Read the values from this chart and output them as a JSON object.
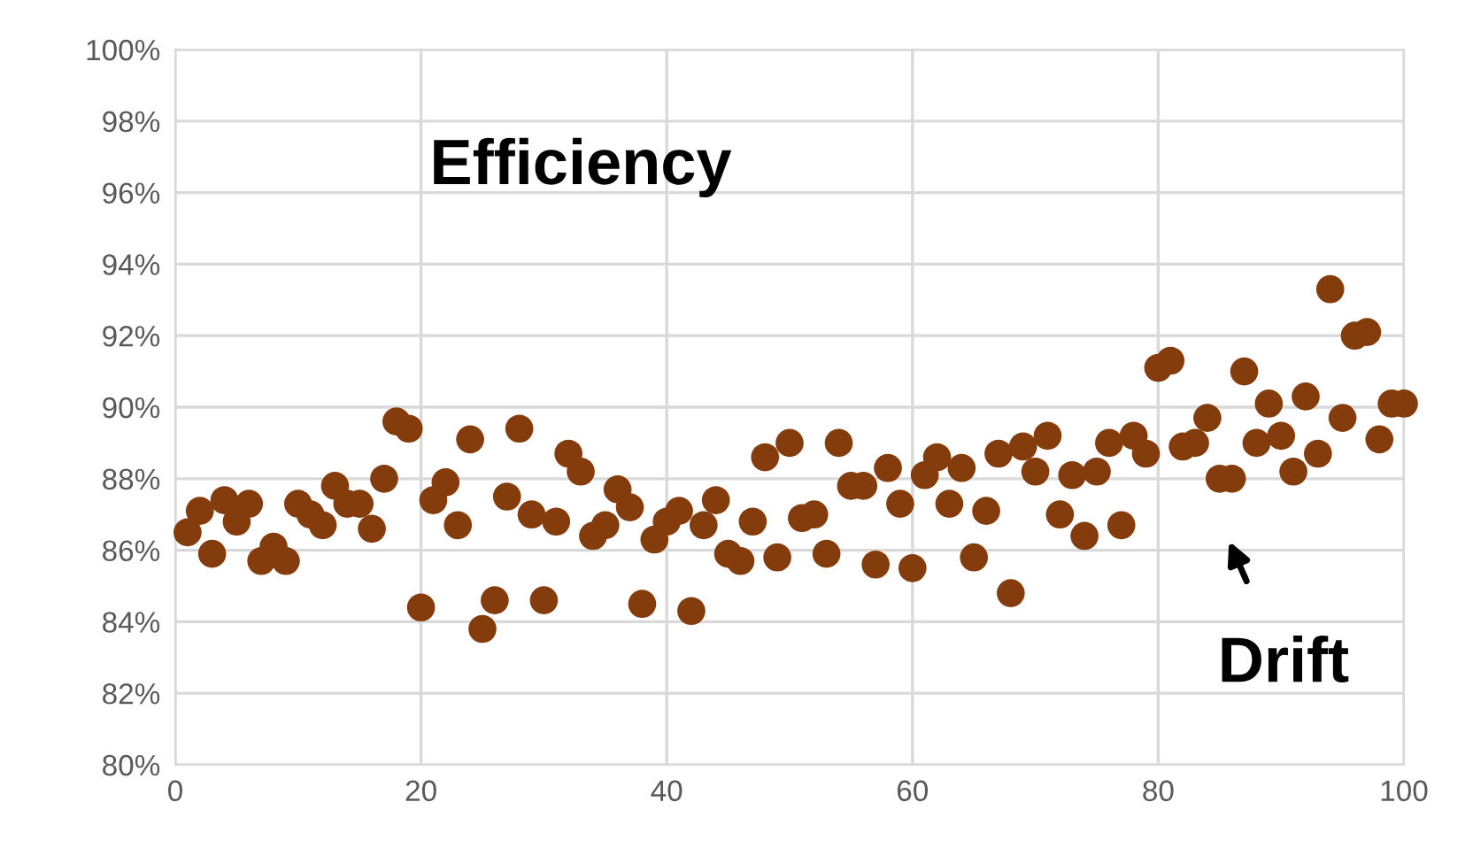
{
  "chart_data": {
    "type": "scatter",
    "title": "Efficiency",
    "x": [
      1,
      2,
      3,
      4,
      5,
      6,
      7,
      8,
      9,
      10,
      11,
      12,
      13,
      14,
      15,
      16,
      17,
      18,
      19,
      20,
      21,
      22,
      23,
      24,
      25,
      26,
      27,
      28,
      29,
      30,
      31,
      32,
      33,
      34,
      35,
      36,
      37,
      38,
      39,
      40,
      41,
      42,
      43,
      44,
      45,
      46,
      47,
      48,
      49,
      50,
      51,
      52,
      53,
      54,
      55,
      56,
      57,
      58,
      59,
      60,
      61,
      62,
      63,
      64,
      65,
      66,
      67,
      68,
      69,
      70,
      71,
      72,
      73,
      74,
      75,
      76,
      77,
      78,
      79,
      80,
      81,
      82,
      83,
      84,
      85,
      86,
      87,
      88,
      89,
      90,
      91,
      92,
      93,
      94,
      95,
      96,
      97,
      98,
      99,
      100
    ],
    "series": [
      {
        "color": "#843c0c",
        "values": [
          86.5,
          87.1,
          85.9,
          87.4,
          86.8,
          87.3,
          85.7,
          86.1,
          85.7,
          87.3,
          87.0,
          86.7,
          87.8,
          87.3,
          87.3,
          86.6,
          88.0,
          89.6,
          89.4,
          84.4,
          87.4,
          87.9,
          86.7,
          89.1,
          83.8,
          84.6,
          87.5,
          89.4,
          87.0,
          84.6,
          86.8,
          88.7,
          88.2,
          86.4,
          86.7,
          87.7,
          87.2,
          84.5,
          86.3,
          86.8,
          87.1,
          84.3,
          86.7,
          87.4,
          85.9,
          85.7,
          86.8,
          88.6,
          85.8,
          89.0,
          86.9,
          87.0,
          85.9,
          89.0,
          87.8,
          87.8,
          85.6,
          88.3,
          87.3,
          85.5,
          88.1,
          88.6,
          87.3,
          88.3,
          85.8,
          87.1,
          88.7,
          84.8,
          88.9,
          88.2,
          89.2,
          87.0,
          88.1,
          86.4,
          88.2,
          89.0,
          86.7,
          89.2,
          88.7,
          91.1,
          91.3,
          88.9,
          89.0,
          89.7,
          88.0,
          88.0,
          91.0,
          89.0,
          90.1,
          89.2,
          88.2,
          90.3,
          88.7,
          93.3,
          89.7,
          92.0,
          92.1,
          89.1,
          90.1,
          90.1
        ]
      }
    ],
    "xlim": [
      0,
      100
    ],
    "xticks": [
      0,
      20,
      40,
      60,
      80,
      100
    ],
    "ylim": [
      80,
      100
    ],
    "yticks": [
      {
        "value": 80,
        "label": "80%"
      },
      {
        "value": 82,
        "label": "82%"
      },
      {
        "value": 84,
        "label": "84%"
      },
      {
        "value": 86,
        "label": "86%"
      },
      {
        "value": 88,
        "label": "88%"
      },
      {
        "value": 90,
        "label": "90%"
      },
      {
        "value": 92,
        "label": "92%"
      },
      {
        "value": 94,
        "label": "94%"
      },
      {
        "value": 96,
        "label": "96%"
      },
      {
        "value": 98,
        "label": "98%"
      },
      {
        "value": 100,
        "label": "100%"
      }
    ],
    "grid": true,
    "marker": "circle",
    "annotations": [
      "Drift"
    ]
  }
}
